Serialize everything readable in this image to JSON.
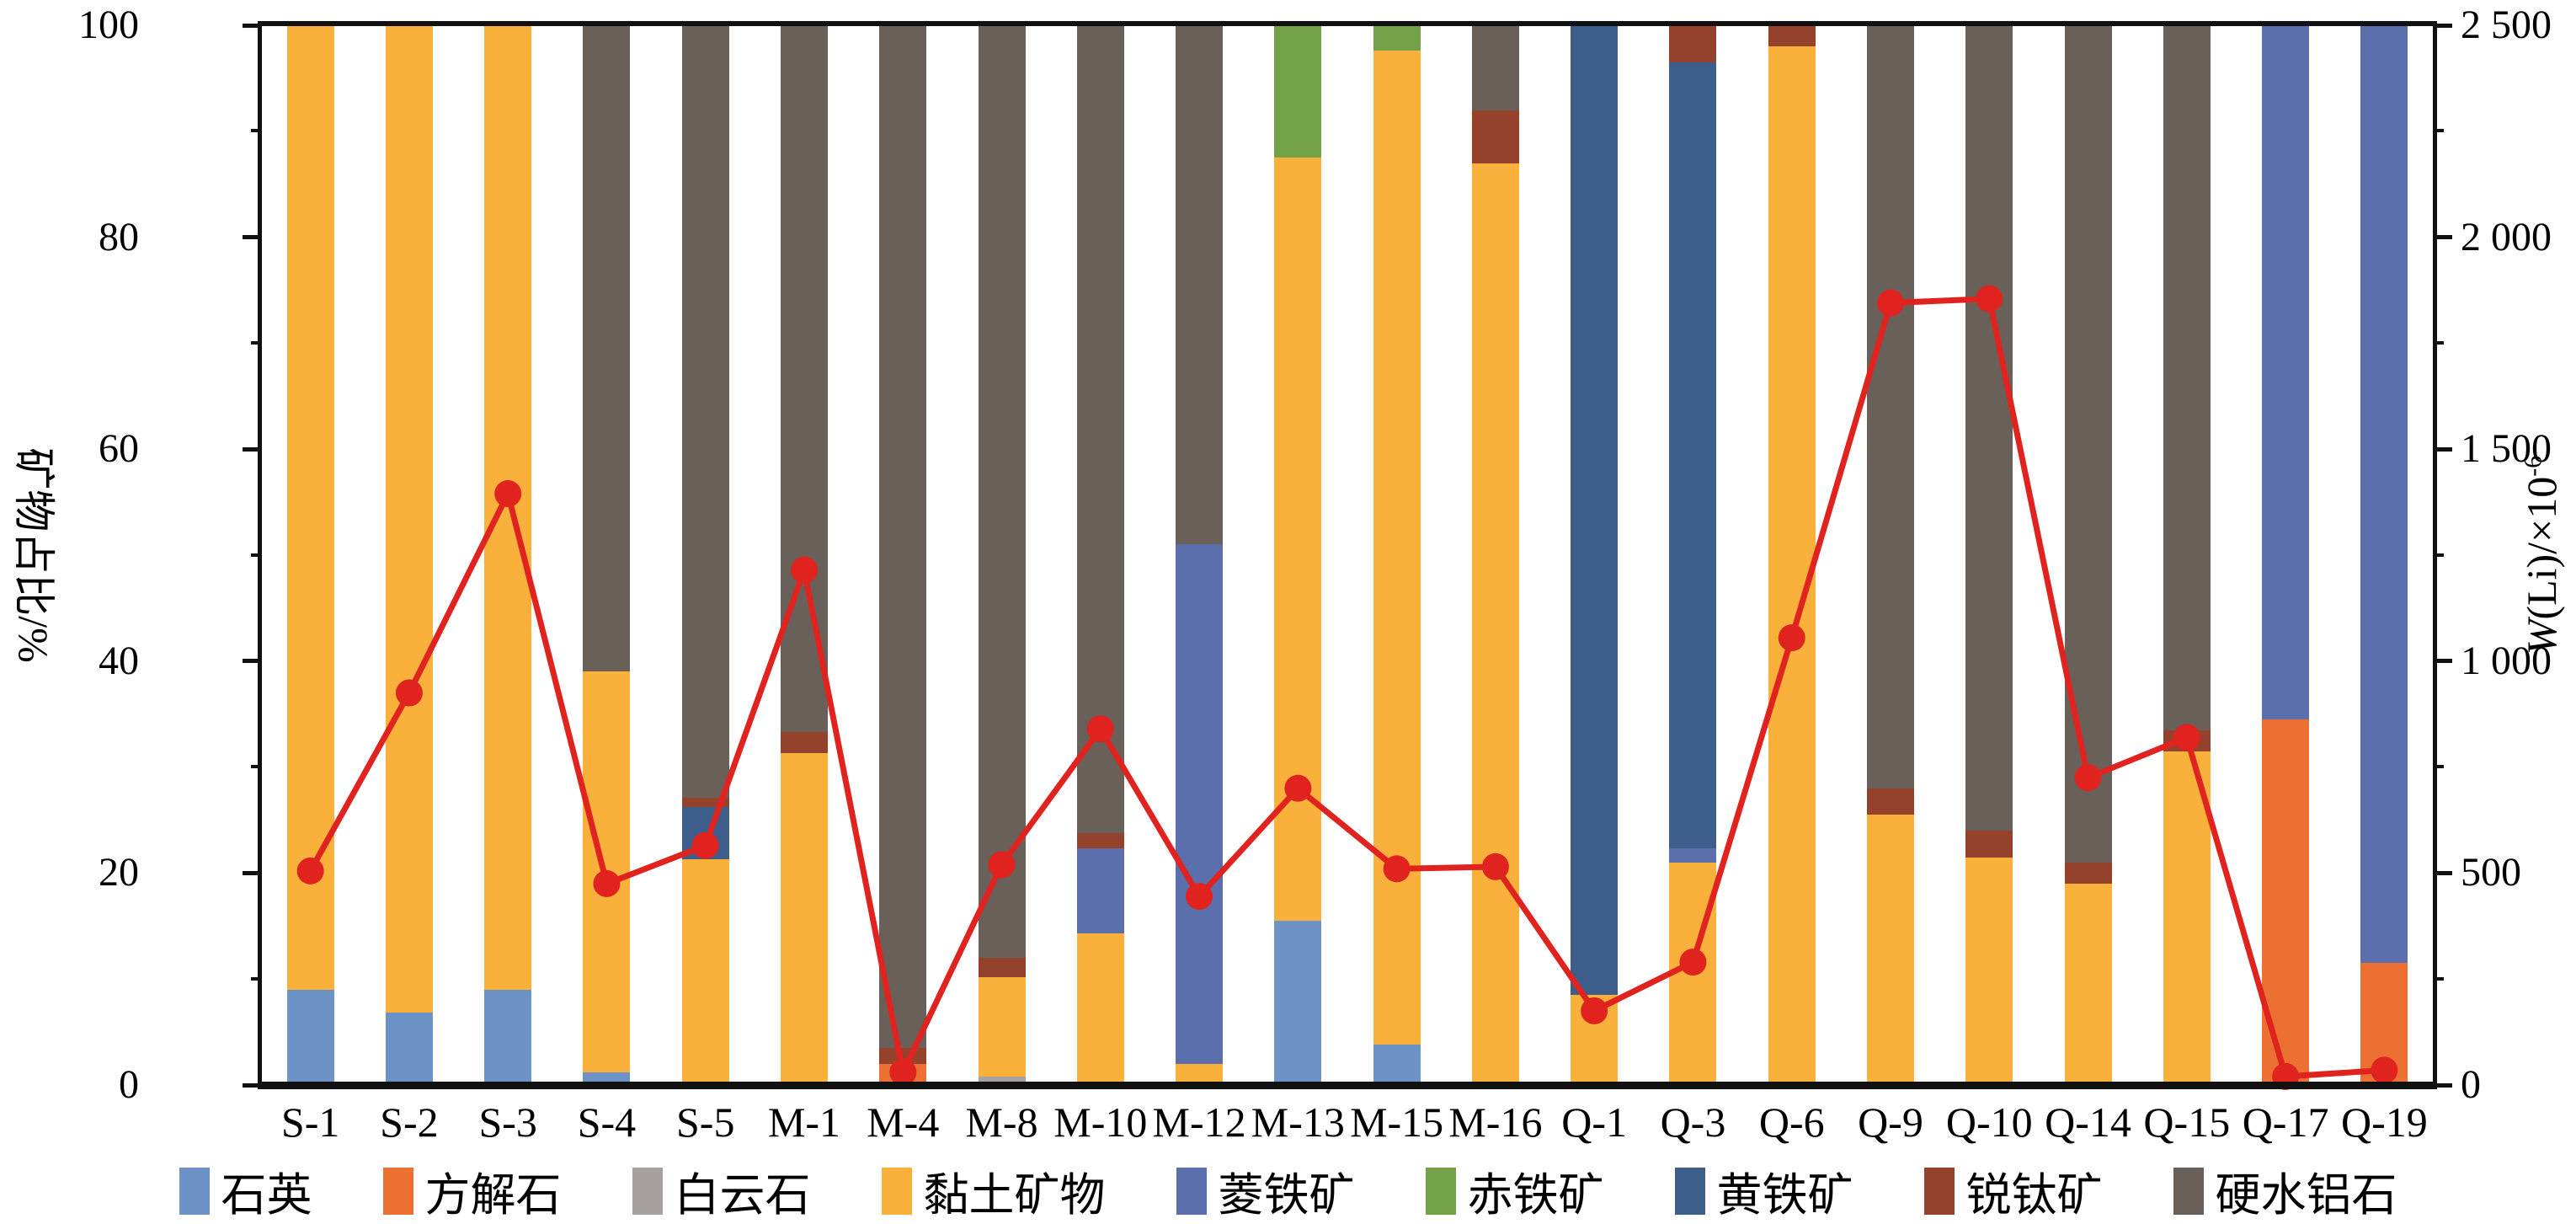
{
  "chart_data": {
    "type": "bar",
    "subtype": "stacked-bar-with-line",
    "title": "",
    "categories": [
      "S-1",
      "S-2",
      "S-3",
      "S-4",
      "S-5",
      "M-1",
      "M-4",
      "M-8",
      "M-10",
      "M-12",
      "M-13",
      "M-15",
      "M-16",
      "Q-1",
      "Q-3",
      "Q-6",
      "Q-9",
      "Q-10",
      "Q-14",
      "Q-15",
      "Q-17",
      "Q-19"
    ],
    "left_axis": {
      "label": "矿物占比/%",
      "min": 0,
      "max": 100,
      "major_step": 20,
      "minor_step": 10,
      "ticks": [
        "0",
        "20",
        "40",
        "60",
        "80",
        "100"
      ]
    },
    "right_axis": {
      "label_w": "W",
      "label_rest": "(Li)/×10",
      "label_sup": "-6",
      "min": 0,
      "max": 2500,
      "major_step": 500,
      "minor_step": 250,
      "ticks": [
        "0",
        "500",
        "1 000",
        "1 500",
        "2 000",
        "2 500"
      ]
    },
    "grid": "off",
    "legend_position": "bottom",
    "series": [
      {
        "name": "石英",
        "color": "#6D93C6",
        "values": [
          9,
          6.8,
          9,
          1.2,
          0,
          0,
          0,
          0,
          0,
          0,
          15.5,
          3.8,
          0,
          0,
          0,
          0,
          0,
          0,
          0,
          0,
          0,
          0
        ]
      },
      {
        "name": "方解石",
        "color": "#EB7031",
        "values": [
          0,
          0,
          0,
          0,
          0,
          0,
          2,
          0,
          0,
          0,
          0,
          0,
          0,
          0,
          0,
          0,
          0,
          0,
          0,
          0,
          34.5,
          11.5
        ]
      },
      {
        "name": "白云石",
        "color": "#A7A2A0",
        "values": [
          0,
          0,
          0,
          0,
          0,
          0,
          0,
          0.8,
          0,
          0,
          0,
          0,
          0,
          0,
          0,
          0,
          0,
          0,
          0,
          0,
          0,
          0
        ]
      },
      {
        "name": "黏土矿物",
        "color": "#F9B13B",
        "values": [
          91,
          93.2,
          91,
          37.8,
          21.3,
          31.3,
          0,
          9.4,
          14.3,
          2,
          72,
          93.8,
          87,
          8.5,
          21,
          98,
          25.5,
          21.5,
          19,
          31.5,
          0,
          0
        ]
      },
      {
        "name": "菱铁矿",
        "color": "#5C6FAD",
        "values": [
          0,
          0,
          0,
          0,
          0,
          0,
          0,
          0,
          8,
          49,
          0,
          0,
          0,
          0,
          1.3,
          0,
          0,
          0,
          0,
          0,
          65.5,
          88.5
        ]
      },
      {
        "name": "赤铁矿",
        "color": "#73A147",
        "values": [
          0,
          0,
          0,
          0,
          0,
          0,
          0,
          0,
          0,
          0,
          12.5,
          2.4,
          0,
          0,
          0,
          0,
          0,
          0,
          0,
          0,
          0,
          0
        ]
      },
      {
        "name": "黄铁矿",
        "color": "#3D5E8B",
        "values": [
          0,
          0,
          0,
          0,
          4.9,
          0,
          0,
          0,
          0,
          0,
          0,
          0,
          0,
          91.5,
          74.2,
          0,
          0,
          0,
          0,
          0,
          0,
          0
        ]
      },
      {
        "name": "锐钛矿",
        "color": "#94422B",
        "values": [
          0,
          0,
          0,
          0,
          0.9,
          2,
          1.5,
          1.8,
          1.5,
          0,
          0,
          0,
          5,
          0,
          3.5,
          2,
          2.5,
          2.5,
          2,
          2,
          0,
          0
        ]
      },
      {
        "name": "硬水铝石",
        "color": "#696059",
        "values": [
          0,
          0,
          0,
          61,
          72.9,
          66.7,
          96.5,
          88,
          76.2,
          49,
          0,
          0,
          8,
          0,
          0,
          0,
          72,
          76,
          79,
          66.5,
          0,
          0
        ]
      }
    ],
    "line_series": {
      "name": "W(Li)",
      "color": "#E0231E",
      "values": [
        505,
        925,
        1395,
        475,
        565,
        1215,
        30,
        520,
        840,
        445,
        700,
        510,
        515,
        175,
        290,
        1055,
        1845,
        1855,
        725,
        820,
        20,
        35
      ]
    }
  }
}
